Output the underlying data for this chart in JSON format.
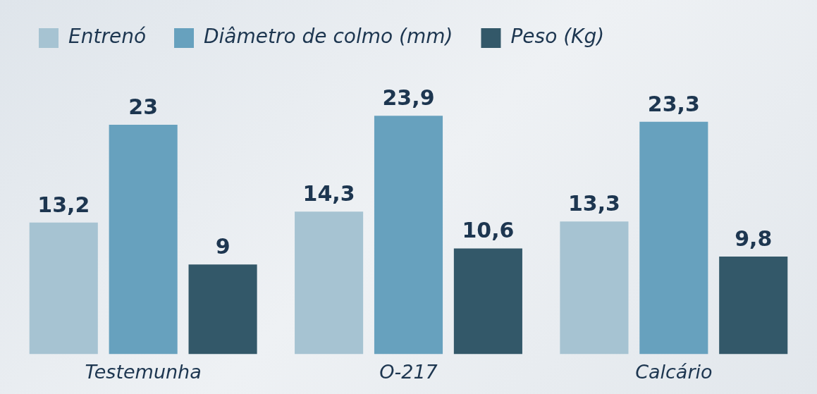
{
  "chart_data": {
    "type": "bar",
    "categories": [
      "Testemunha",
      "O-217",
      "Calcário"
    ],
    "series": [
      {
        "name": "Entrenó",
        "color": "#a6c3d2",
        "values": [
          13.2,
          14.3,
          13.3
        ],
        "value_labels": [
          "13,2",
          "14,3",
          "13,3"
        ]
      },
      {
        "name": "Diâmetro de colmo (mm)",
        "color": "#67a1be",
        "values": [
          23,
          23.9,
          23.3
        ],
        "value_labels": [
          "23",
          "23,9",
          "23,3"
        ]
      },
      {
        "name": "Peso (Kg)",
        "color": "#335869",
        "values": [
          9,
          10.6,
          9.8
        ],
        "value_labels": [
          "9",
          "10,6",
          "9,8"
        ]
      }
    ],
    "legend": "top left",
    "grid": false
  }
}
